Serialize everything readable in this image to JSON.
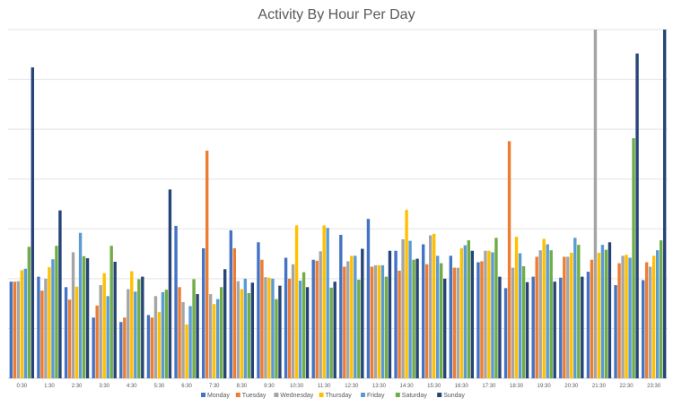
{
  "chart_data": {
    "type": "bar",
    "title": "Activity By Hour Per Day",
    "xlabel": "",
    "ylabel": "",
    "ylim": [
      0,
      70
    ],
    "grid": true,
    "legend_position": "bottom",
    "categories": [
      "0:30",
      "1:30",
      "2:30",
      "3:30",
      "4:30",
      "5:30",
      "6:30",
      "7:30",
      "8:30",
      "9:30",
      "10:30",
      "11:30",
      "12:30",
      "13:30",
      "14:30",
      "15:30",
      "16:30",
      "17:30",
      "18:30",
      "19:30",
      "20:30",
      "21:30",
      "22:30",
      "23:30"
    ],
    "series": [
      {
        "name": "Monday",
        "color": "#4472C4",
        "values": [
          19.4,
          20.4,
          18.3,
          12.2,
          11.3,
          12.7,
          30.6,
          26.1,
          29.7,
          27.3,
          24.2,
          23.8,
          28.8,
          32.0,
          25.6,
          26.9,
          24.6,
          23.3,
          18.1,
          20.4,
          20.2,
          21.4,
          18.7,
          19.7
        ]
      },
      {
        "name": "Tuesday",
        "color": "#ED7D31",
        "values": [
          19.4,
          17.6,
          15.8,
          14.6,
          12.2,
          12.2,
          18.3,
          45.7,
          26.1,
          23.8,
          20.0,
          23.6,
          22.4,
          22.4,
          21.6,
          22.9,
          22.2,
          23.5,
          47.6,
          24.4,
          24.4,
          23.8,
          23.1,
          23.3
        ]
      },
      {
        "name": "Wednesday",
        "color": "#A5A5A5",
        "values": [
          19.5,
          20.0,
          25.3,
          18.7,
          17.9,
          16.5,
          15.3,
          16.9,
          19.5,
          20.3,
          22.9,
          25.5,
          23.5,
          22.7,
          27.9,
          28.7,
          22.2,
          25.6,
          22.2,
          25.7,
          24.4,
          70.0,
          24.6,
          22.4
        ]
      },
      {
        "name": "Thursday",
        "color": "#FFC000",
        "values": [
          21.7,
          22.3,
          18.4,
          21.1,
          21.5,
          13.3,
          10.8,
          14.9,
          17.9,
          20.2,
          30.7,
          30.7,
          24.6,
          22.7,
          33.8,
          29.0,
          26.1,
          25.6,
          28.4,
          28.0,
          25.2,
          25.2,
          24.8,
          24.6
        ]
      },
      {
        "name": "Friday",
        "color": "#5B9BD5",
        "values": [
          22.0,
          23.9,
          29.2,
          16.5,
          17.4,
          17.3,
          14.5,
          15.9,
          20.0,
          20.0,
          19.6,
          30.2,
          24.6,
          22.7,
          27.6,
          24.6,
          26.7,
          25.3,
          25.1,
          26.9,
          28.2,
          26.8,
          24.2,
          25.7
        ]
      },
      {
        "name": "Saturday",
        "color": "#70AD47",
        "values": [
          26.4,
          26.6,
          24.5,
          26.6,
          19.9,
          17.8,
          19.9,
          18.3,
          17.1,
          15.9,
          21.3,
          18.2,
          19.8,
          20.4,
          23.8,
          23.1,
          27.7,
          28.2,
          22.5,
          25.7,
          26.8,
          25.8,
          48.2,
          27.7
        ]
      },
      {
        "name": "Sunday",
        "color": "#264478",
        "values": [
          62.4,
          33.7,
          24.1,
          23.4,
          20.4,
          37.9,
          16.9,
          21.9,
          19.2,
          18.6,
          18.3,
          19.4,
          26.0,
          25.6,
          24.0,
          20.0,
          25.6,
          20.4,
          19.3,
          19.4,
          20.4,
          27.3,
          65.2,
          70.0
        ]
      }
    ]
  }
}
